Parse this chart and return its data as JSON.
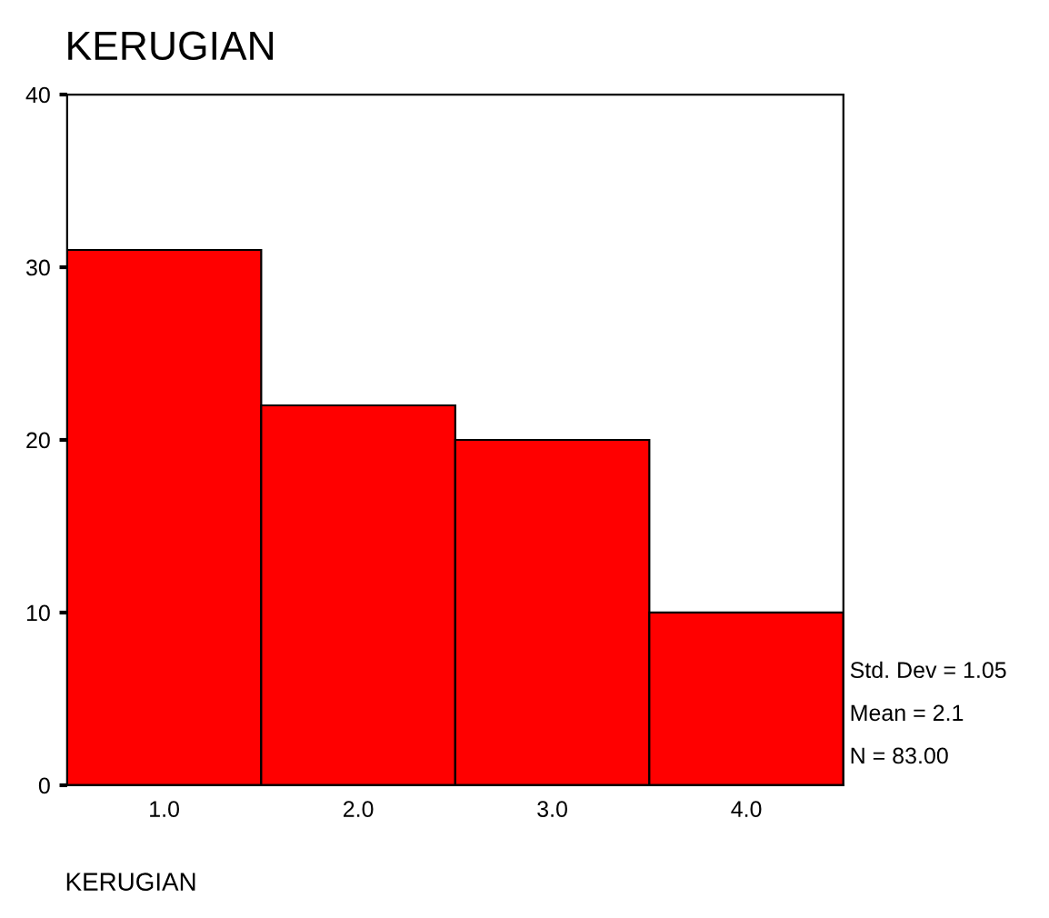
{
  "chart_data": {
    "type": "histogram",
    "title": "KERUGIAN",
    "xlabel": "KERUGIAN",
    "bins": [
      0.5,
      1.5,
      2.5,
      3.5,
      4.5
    ],
    "values": [
      31,
      22,
      20,
      10
    ],
    "color": "#ff0000",
    "xlim": [
      0.5,
      4.5
    ],
    "xticks": [
      {
        "value": 1,
        "label": "1.0"
      },
      {
        "value": 2,
        "label": "2.0"
      },
      {
        "value": 3,
        "label": "3.0"
      },
      {
        "value": 4,
        "label": "4.0"
      }
    ],
    "ylim": [
      0,
      40
    ],
    "yticks": [
      0,
      10,
      20,
      30,
      40
    ],
    "grid": false,
    "legend": false,
    "annotations": [
      "Std. Dev = 1.05",
      "Mean = 2.1",
      "N = 83.00"
    ]
  }
}
